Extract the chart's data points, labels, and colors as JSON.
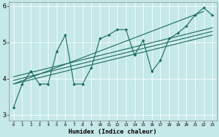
{
  "xlabel": "Humidex (Indice chaleur)",
  "bg_color": "#c5e8e8",
  "line_color": "#1a6b5a",
  "grid_color": "#ffffff",
  "xlim": [
    -0.5,
    23.5
  ],
  "ylim": [
    2.85,
    6.1
  ],
  "xticks": [
    0,
    1,
    2,
    3,
    4,
    5,
    6,
    7,
    8,
    9,
    10,
    11,
    12,
    13,
    14,
    15,
    16,
    17,
    18,
    19,
    20,
    21,
    22,
    23
  ],
  "yticks": [
    3,
    4,
    5,
    6
  ],
  "scatter_line": {
    "x": [
      0,
      1,
      2,
      3,
      4,
      5,
      6,
      7,
      8,
      9,
      10,
      11,
      12,
      13,
      14,
      15,
      16,
      17,
      18,
      19,
      20,
      21,
      22,
      23
    ],
    "y": [
      3.2,
      3.85,
      4.2,
      3.85,
      3.85,
      4.75,
      5.2,
      3.85,
      3.85,
      4.3,
      5.1,
      5.2,
      5.35,
      5.35,
      4.65,
      5.05,
      4.2,
      4.5,
      5.1,
      5.25,
      5.45,
      5.75,
      5.95,
      5.75
    ]
  },
  "trend_lines": [
    {
      "x": [
        0,
        23
      ],
      "y": [
        3.85,
        5.2
      ]
    },
    {
      "x": [
        0,
        23
      ],
      "y": [
        3.95,
        5.3
      ]
    },
    {
      "x": [
        0,
        23
      ],
      "y": [
        4.05,
        5.4
      ]
    },
    {
      "x": [
        0,
        22
      ],
      "y": [
        3.85,
        5.85
      ]
    }
  ]
}
